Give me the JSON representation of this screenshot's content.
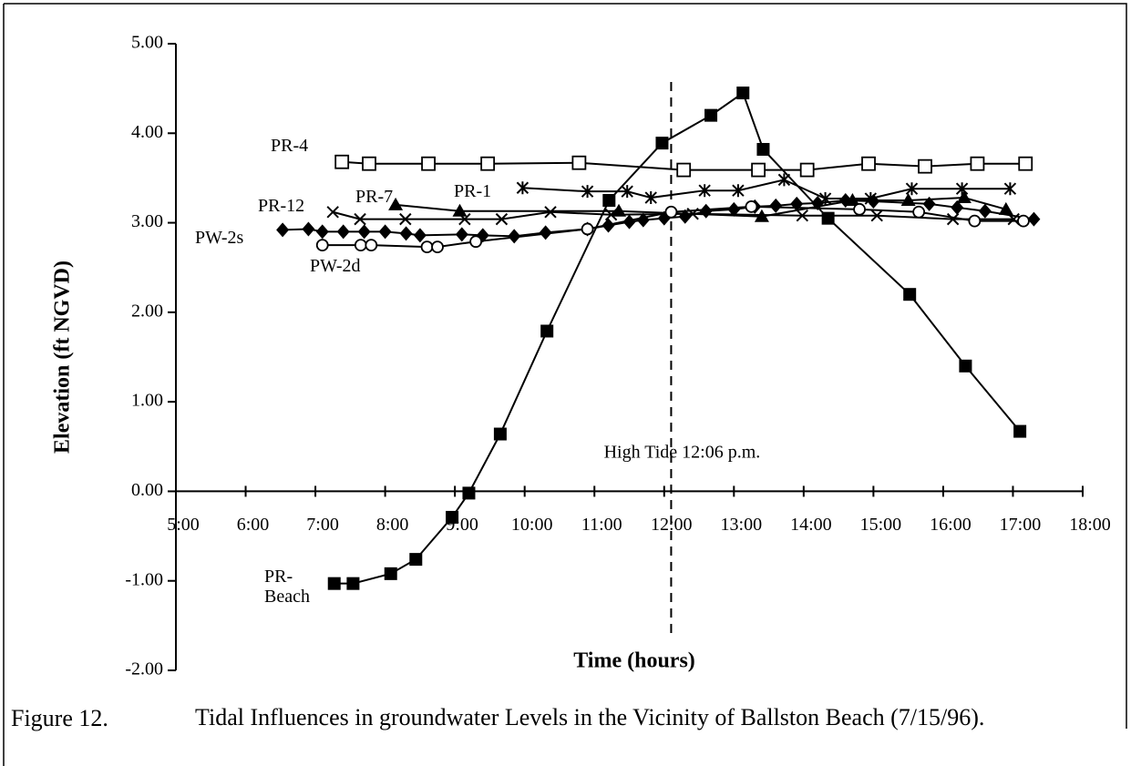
{
  "chart_data": {
    "type": "line",
    "x_label": "Time (hours)",
    "y_label": "Elevation (ft NGVD)",
    "xlim": [
      5,
      18
    ],
    "ylim": [
      -2,
      5
    ],
    "xticks": [
      {
        "value": 5,
        "label": "5:00"
      },
      {
        "value": 6,
        "label": "6:00"
      },
      {
        "value": 7,
        "label": "7:00"
      },
      {
        "value": 8,
        "label": "8:00"
      },
      {
        "value": 9,
        "label": "9:00"
      },
      {
        "value": 10,
        "label": "10:00"
      },
      {
        "value": 11,
        "label": "11:00"
      },
      {
        "value": 12,
        "label": "12:00"
      },
      {
        "value": 13,
        "label": "13:00"
      },
      {
        "value": 14,
        "label": "14:00"
      },
      {
        "value": 15,
        "label": "15:00"
      },
      {
        "value": 16,
        "label": "16:00"
      },
      {
        "value": 17,
        "label": "17:00"
      },
      {
        "value": 18,
        "label": "18:00"
      }
    ],
    "yticks": [
      {
        "value": -2,
        "label": "-2.00"
      },
      {
        "value": -1,
        "label": "-1.00"
      },
      {
        "value": 0,
        "label": "0.00"
      },
      {
        "value": 1,
        "label": "1.00"
      },
      {
        "value": 2,
        "label": "2.00"
      },
      {
        "value": 3,
        "label": "3.00"
      },
      {
        "value": 4,
        "label": "4.00"
      },
      {
        "value": 5,
        "label": "5.00"
      }
    ],
    "grid": false,
    "annotation": {
      "text": "High Tide 12:06 p.m.",
      "x": 12.1
    },
    "series": [
      {
        "name": "PR-Beach",
        "color": "#000000",
        "marker": "square-filled",
        "x": [
          7.27,
          7.54,
          8.08,
          8.44,
          8.96,
          9.2,
          9.65,
          10.32,
          11.21,
          11.97,
          12.67,
          13.13,
          13.42,
          14.35,
          15.52,
          16.32,
          17.1
        ],
        "values": [
          -1.03,
          -1.03,
          -0.92,
          -0.76,
          -0.29,
          -0.02,
          0.64,
          1.79,
          3.25,
          3.89,
          4.2,
          4.45,
          3.82,
          3.05,
          2.2,
          1.4,
          0.67
        ]
      },
      {
        "name": "PR-4",
        "color": "#000000",
        "marker": "square-open",
        "x": [
          7.38,
          7.77,
          8.62,
          9.47,
          10.78,
          12.28,
          13.35,
          14.05,
          14.93,
          15.74,
          16.49,
          17.18
        ],
        "values": [
          3.68,
          3.66,
          3.66,
          3.66,
          3.67,
          3.59,
          3.59,
          3.59,
          3.66,
          3.63,
          3.66,
          3.66
        ]
      },
      {
        "name": "PR-1",
        "color": "#000000",
        "marker": "asterisk",
        "x": [
          9.97,
          10.9,
          11.47,
          11.81,
          12.58,
          13.06,
          13.72,
          14.31,
          14.96,
          15.55,
          16.27,
          16.96
        ],
        "values": [
          3.39,
          3.35,
          3.35,
          3.28,
          3.36,
          3.36,
          3.48,
          3.27,
          3.27,
          3.38,
          3.38,
          3.38
        ]
      },
      {
        "name": "PR-7",
        "color": "#000000",
        "marker": "triangle",
        "x": [
          8.15,
          9.07,
          11.35,
          13.4,
          14.7,
          15.5,
          16.3,
          16.9
        ],
        "values": [
          3.2,
          3.13,
          3.13,
          3.07,
          3.25,
          3.25,
          3.28,
          3.15
        ]
      },
      {
        "name": "PR-12",
        "color": "#000000",
        "marker": "x",
        "x": [
          7.25,
          7.64,
          8.29,
          9.14,
          9.67,
          10.37,
          11.24,
          12.41,
          13.98,
          15.05,
          16.14,
          17.01
        ],
        "values": [
          3.12,
          3.04,
          3.04,
          3.04,
          3.04,
          3.12,
          3.09,
          3.1,
          3.08,
          3.08,
          3.04,
          3.04
        ]
      },
      {
        "name": "PW-2s",
        "color": "#000000",
        "marker": "diamond",
        "x": [
          6.53,
          6.9,
          7.1,
          7.4,
          7.7,
          8.0,
          8.3,
          8.5,
          9.1,
          9.4,
          9.85,
          10.3,
          10.9,
          11.2,
          11.5,
          11.7,
          12.0,
          12.3,
          12.6,
          13.0,
          13.3,
          13.6,
          13.9,
          14.2,
          14.6,
          15.0,
          15.8,
          16.2,
          16.6,
          17.3
        ],
        "values": [
          2.92,
          2.93,
          2.9,
          2.9,
          2.9,
          2.9,
          2.88,
          2.86,
          2.87,
          2.86,
          2.85,
          2.89,
          2.93,
          2.97,
          3.01,
          3.03,
          3.05,
          3.07,
          3.13,
          3.15,
          3.18,
          3.19,
          3.21,
          3.22,
          3.25,
          3.24,
          3.21,
          3.17,
          3.13,
          3.04
        ]
      },
      {
        "name": "PW-2d",
        "color": "#000000",
        "marker": "circle-open",
        "x": [
          7.1,
          7.65,
          7.8,
          8.6,
          8.75,
          9.3,
          10.9,
          12.1,
          13.25,
          14.8,
          15.65,
          16.45,
          17.15
        ],
        "values": [
          2.75,
          2.75,
          2.75,
          2.73,
          2.73,
          2.79,
          2.93,
          3.12,
          3.18,
          3.15,
          3.12,
          3.02,
          3.02
        ]
      }
    ]
  },
  "caption": {
    "label": "Figure 12.",
    "text": "Tidal Influences in groundwater Levels in the Vicinity of Ballston Beach (7/15/96)."
  }
}
